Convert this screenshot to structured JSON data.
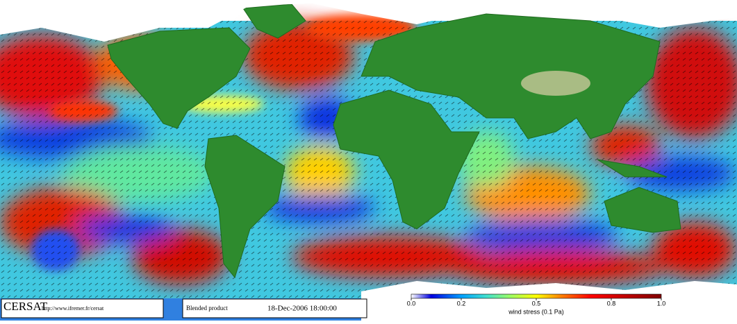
{
  "footer": {
    "logo": "CERSAT",
    "url": "http://www.ifremer.fr/cersat",
    "product": "Blended product",
    "date": "18-Dec-2006 18:00:00"
  },
  "colorbar": {
    "label": "wind stress (0.1 Pa)",
    "range": [
      0,
      1
    ],
    "ticks": [
      {
        "value": 0,
        "label": "0.0"
      },
      {
        "value": 0.2,
        "label": "0.2"
      },
      {
        "value": 0.5,
        "label": "0.5"
      },
      {
        "value": 0.8,
        "label": "0.8"
      },
      {
        "value": 1,
        "label": "1.0"
      }
    ]
  }
}
